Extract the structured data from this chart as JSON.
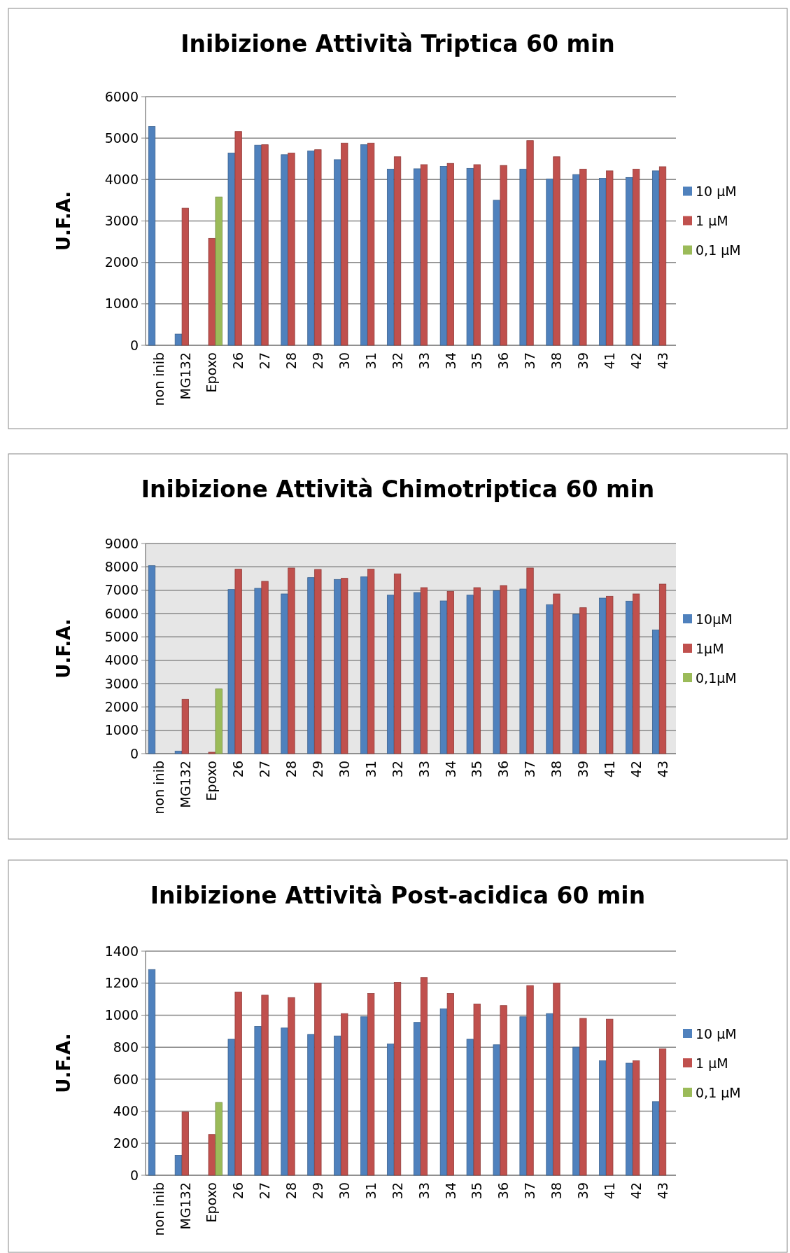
{
  "chart_data": [
    {
      "type": "bar",
      "title": "Inibizione Attività Triptica 60 min",
      "ylabel": "U.F.A.",
      "categories": [
        "non inib",
        "MG132",
        "Epoxo",
        "26",
        "27",
        "28",
        "29",
        "30",
        "31",
        "32",
        "33",
        "34",
        "35",
        "36",
        "37",
        "38",
        "39",
        "41",
        "42",
        "43"
      ],
      "series": [
        {
          "name": "10 µM",
          "color": "#4f81bd",
          "values": [
            5280,
            270,
            null,
            4640,
            4830,
            4600,
            4690,
            4480,
            4840,
            4250,
            4260,
            4320,
            4270,
            3500,
            4250,
            4010,
            4120,
            4030,
            4050,
            4210
          ]
        },
        {
          "name": "1 µM",
          "color": "#c0504d",
          "values": [
            null,
            3310,
            2580,
            5160,
            4840,
            4640,
            4720,
            4880,
            4880,
            4550,
            4360,
            4390,
            4360,
            4340,
            4940,
            4550,
            4250,
            4210,
            4250,
            4310
          ]
        },
        {
          "name": "0,1 µM",
          "color": "#9bbb59",
          "values": [
            null,
            null,
            3580,
            null,
            null,
            null,
            null,
            null,
            null,
            null,
            null,
            null,
            null,
            null,
            null,
            null,
            null,
            null,
            null,
            null
          ]
        }
      ],
      "ylim": [
        0,
        6000
      ],
      "yticks": [
        0,
        1000,
        2000,
        3000,
        4000,
        5000,
        6000
      ],
      "grid": "y",
      "legend": "right"
    },
    {
      "type": "bar",
      "title": "Inibizione Attività Chimotriptica 60 min",
      "ylabel": "U.F.A.",
      "categories": [
        "non inib",
        "MG132",
        "Epoxo",
        "26",
        "27",
        "28",
        "29",
        "30",
        "31",
        "32",
        "33",
        "34",
        "35",
        "36",
        "37",
        "38",
        "39",
        "41",
        "42",
        "43"
      ],
      "series": [
        {
          "name": "10µM",
          "color": "#4f81bd",
          "values": [
            8050,
            110,
            null,
            7030,
            7080,
            6840,
            7540,
            7460,
            7570,
            6790,
            6900,
            6540,
            6790,
            6980,
            7050,
            6380,
            5970,
            6660,
            6530,
            5300
          ]
        },
        {
          "name": "1µM",
          "color": "#c0504d",
          "values": [
            null,
            2330,
            60,
            7900,
            7380,
            7950,
            7890,
            7510,
            7900,
            7700,
            7110,
            6950,
            7110,
            7200,
            7950,
            6840,
            6250,
            6740,
            6840,
            7260
          ]
        },
        {
          "name": "0,1µM",
          "color": "#9bbb59",
          "values": [
            null,
            null,
            2770,
            null,
            null,
            null,
            null,
            null,
            null,
            null,
            null,
            null,
            null,
            null,
            null,
            null,
            null,
            null,
            null,
            null
          ]
        }
      ],
      "ylim": [
        0,
        9000
      ],
      "yticks": [
        0,
        1000,
        2000,
        3000,
        4000,
        5000,
        6000,
        7000,
        8000,
        9000
      ],
      "grid": "y",
      "legend": "right"
    },
    {
      "type": "bar",
      "title": "Inibizione Attività Post-acidica 60 min",
      "ylabel": "U.F.A.",
      "categories": [
        "non inib",
        "MG132",
        "Epoxo",
        "26",
        "27",
        "28",
        "29",
        "30",
        "31",
        "32",
        "33",
        "34",
        "35",
        "36",
        "37",
        "38",
        "39",
        "41",
        "42",
        "43"
      ],
      "series": [
        {
          "name": "10 µM",
          "color": "#4f81bd",
          "values": [
            1285,
            125,
            null,
            850,
            930,
            920,
            880,
            870,
            990,
            820,
            955,
            1040,
            850,
            815,
            990,
            1010,
            800,
            715,
            700,
            460
          ]
        },
        {
          "name": "1 µM",
          "color": "#c0504d",
          "values": [
            null,
            395,
            255,
            1145,
            1125,
            1110,
            1200,
            1010,
            1135,
            1205,
            1235,
            1135,
            1070,
            1060,
            1185,
            1200,
            980,
            975,
            715,
            790
          ]
        },
        {
          "name": "0,1 µM",
          "color": "#9bbb59",
          "values": [
            null,
            null,
            455,
            null,
            null,
            null,
            null,
            null,
            null,
            null,
            null,
            null,
            null,
            null,
            null,
            null,
            null,
            null,
            null,
            null
          ]
        }
      ],
      "ylim": [
        0,
        1400
      ],
      "yticks": [
        0,
        200,
        400,
        600,
        800,
        1000,
        1200,
        1400
      ],
      "grid": "y",
      "legend": "right"
    }
  ]
}
